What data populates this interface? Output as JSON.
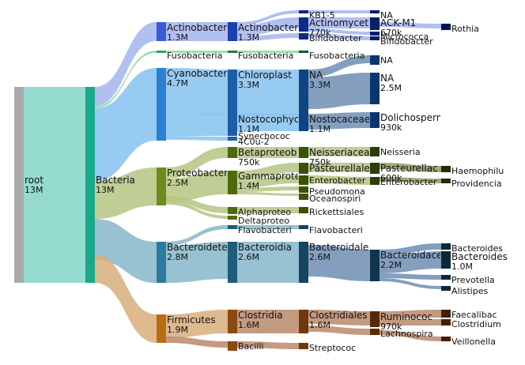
{
  "diagram": {
    "colors": {
      "root": "#aaaaaa",
      "bacteria": "#82d3c5",
      "actinobacteria": "#a4b4ef",
      "fusobacteria": "#8fd8a6",
      "cyanobacteria": "#86c2f0",
      "proteobacteria": "#b5c583",
      "bacteroidetes": "#86b6c9",
      "firmicutes": "#d8ae7c",
      "firmicutes_dark": "#b88a6a",
      "bacteroid_dark": "#6f8eb3"
    },
    "nodes": [
      {
        "id": "root",
        "label": "root",
        "value": "13M"
      },
      {
        "id": "bacteria",
        "label": "Bacteria",
        "value": "13M"
      },
      {
        "id": "actinobacteria",
        "label": "Actinobacter",
        "value": "1.3M"
      },
      {
        "id": "fusobacteria",
        "label": "Fusobacteria",
        "value": ""
      },
      {
        "id": "cyanobacteria",
        "label": "Cyanobacter",
        "value": "4.7M"
      },
      {
        "id": "proteobacteria",
        "label": "Proteobacter",
        "value": "2.5M"
      },
      {
        "id": "bacteroidetes",
        "label": "Bacteroidete",
        "value": "2.8M"
      },
      {
        "id": "firmicutes",
        "label": "Firmicutes",
        "value": "1.9M"
      },
      {
        "id": "actinobacteria_c",
        "label": "Actinobacter",
        "value": "1.3M"
      },
      {
        "id": "fusobacteria_c",
        "label": "Fusobacteria",
        "value": ""
      },
      {
        "id": "chloroplast",
        "label": "Chloroplast",
        "value": "3.3M"
      },
      {
        "id": "nostocophy",
        "label": "Nostocophyc",
        "value": "1.1M"
      },
      {
        "id": "synechococ",
        "label": "Synechococ",
        "value": ""
      },
      {
        "id": "4c0u2",
        "label": "4C0u-2",
        "value": ""
      },
      {
        "id": "betaproteo",
        "label": "Betaproteob",
        "value": "750k"
      },
      {
        "id": "gammaproteo",
        "label": "Gammaprote",
        "value": "1.4M"
      },
      {
        "id": "alphaproteo",
        "label": "Alphaproteo",
        "value": ""
      },
      {
        "id": "deltaproteo",
        "label": "Deltaproteo",
        "value": ""
      },
      {
        "id": "flavobacteri_c",
        "label": "Flavobacteri",
        "value": ""
      },
      {
        "id": "bacteroidia",
        "label": "Bacteroidia",
        "value": "2.6M"
      },
      {
        "id": "clostridia",
        "label": "Clostridia",
        "value": "1.6M"
      },
      {
        "id": "bacilli",
        "label": "Bacilli",
        "value": ""
      },
      {
        "id": "kb1",
        "label": "KB1-5",
        "value": ""
      },
      {
        "id": "actinomycet",
        "label": "Actinomycet",
        "value": "770k"
      },
      {
        "id": "bifidobacter",
        "label": "Bifidobacter",
        "value": ""
      },
      {
        "id": "fusobacteri_o",
        "label": "Fusobacteria",
        "value": ""
      },
      {
        "id": "na_o",
        "label": "NA",
        "value": "3.3M"
      },
      {
        "id": "nostocaceae",
        "label": "Nostocaceae",
        "value": "1.1M"
      },
      {
        "id": "neisseriacea",
        "label": "Neisseriacea",
        "value": "750k"
      },
      {
        "id": "pasteurellale",
        "label": "Pasteurellale",
        "value": ""
      },
      {
        "id": "enterobacter_o",
        "label": "Enterobacter",
        "value": ""
      },
      {
        "id": "pseudomona",
        "label": "Pseudomona",
        "value": ""
      },
      {
        "id": "oceanospiri",
        "label": "Oceanospiri",
        "value": ""
      },
      {
        "id": "rickettsiales",
        "label": "Rickettsiales",
        "value": ""
      },
      {
        "id": "flavobacteri_o",
        "label": "Flavobacteri",
        "value": ""
      },
      {
        "id": "bacteroidale",
        "label": "Bacteroidale",
        "value": "2.6M"
      },
      {
        "id": "clostridiales",
        "label": "Clostridiales",
        "value": "1.6M"
      },
      {
        "id": "streptococ",
        "label": "Streptococ",
        "value": ""
      },
      {
        "id": "na_f1",
        "label": "NA",
        "value": ""
      },
      {
        "id": "ackm1",
        "label": "ACK-M1",
        "value": "670k"
      },
      {
        "id": "micrococca",
        "label": "Micrococca",
        "value": ""
      },
      {
        "id": "bifidobacter_f",
        "label": "Bifidobacter",
        "value": ""
      },
      {
        "id": "na_f2",
        "label": "NA",
        "value": ""
      },
      {
        "id": "na_f3",
        "label": "NA",
        "value": "2.5M"
      },
      {
        "id": "dolichosperm",
        "label": "Dolichosperm",
        "value": "930k"
      },
      {
        "id": "neisseria",
        "label": "Neisseria",
        "value": ""
      },
      {
        "id": "pasteurellac",
        "label": "Pasteurellac",
        "value": "600k"
      },
      {
        "id": "enterobacter_f",
        "label": "Enterobacter",
        "value": ""
      },
      {
        "id": "bacteroidace",
        "label": "Bacteroidace",
        "value": "2.2M"
      },
      {
        "id": "ruminococ",
        "label": "Ruminococ",
        "value": "970k"
      },
      {
        "id": "lachnospira",
        "label": "Lachnospira",
        "value": ""
      },
      {
        "id": "g_rothia",
        "label": "Rothia",
        "value": ""
      },
      {
        "id": "g_haemophilu",
        "label": "Haemophilu",
        "value": ""
      },
      {
        "id": "g_providencia",
        "label": "Providencia",
        "value": ""
      },
      {
        "id": "g_bacteroides",
        "label": "Bacteroides",
        "value": "1.0M"
      },
      {
        "id": "g_bacteroides2",
        "label": "Bacteroides",
        "value": ""
      },
      {
        "id": "g_prevotella",
        "label": "Prevotella",
        "value": ""
      },
      {
        "id": "g_alistipes",
        "label": "Alistipes",
        "value": ""
      },
      {
        "id": "g_faecaliba",
        "label": "Faecalibac",
        "value": ""
      },
      {
        "id": "g_veillonella",
        "label": "Veillonella",
        "value": ""
      },
      {
        "id": "g_clostridium",
        "label": "Clostridium",
        "value": ""
      }
    ]
  }
}
